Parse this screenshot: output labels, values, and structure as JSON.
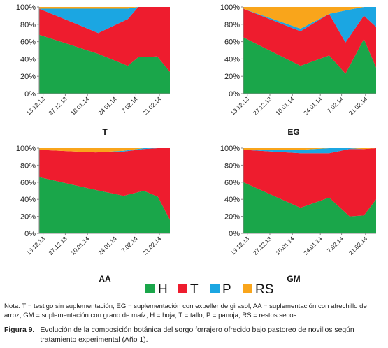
{
  "chart_data": [
    {
      "type": "area",
      "title": "T",
      "stacked": true,
      "categories": [
        "13.12.13",
        "27.12.13",
        "10.01.14",
        "24.01.14",
        "7.02.14",
        "21.02.14"
      ],
      "x": [
        0,
        14,
        28,
        42,
        47,
        56,
        62
      ],
      "ylim": [
        0,
        100
      ],
      "yticks": [
        "0%",
        "20%",
        "40%",
        "60%",
        "80%",
        "100%"
      ],
      "series": [
        {
          "name": "H",
          "values": [
            68,
            57,
            46,
            32,
            42,
            43,
            25
          ]
        },
        {
          "name": "T",
          "values": [
            30,
            27,
            24,
            54,
            58,
            57,
            75
          ]
        },
        {
          "name": "P",
          "values": [
            0,
            14,
            28,
            12,
            0,
            0,
            0
          ]
        },
        {
          "name": "RS",
          "values": [
            2,
            2,
            2,
            2,
            0,
            0,
            0
          ]
        }
      ]
    },
    {
      "type": "area",
      "title": "EG",
      "stacked": true,
      "categories": [
        "13.12.13",
        "27.12.13",
        "10.01.14",
        "24.01.14",
        "7.02.14",
        "21.02.14"
      ],
      "x": [
        0,
        28,
        42,
        50,
        59,
        65
      ],
      "ylim": [
        0,
        100
      ],
      "yticks": [
        "0%",
        "20%",
        "40%",
        "60%",
        "80%",
        "100%"
      ],
      "series": [
        {
          "name": "H",
          "values": [
            65,
            32,
            44,
            23,
            63,
            30
          ]
        },
        {
          "name": "T",
          "values": [
            33,
            40,
            48,
            36,
            27,
            47
          ]
        },
        {
          "name": "P",
          "values": [
            0,
            3,
            0,
            37,
            10,
            23
          ]
        },
        {
          "name": "RS",
          "values": [
            2,
            25,
            8,
            4,
            0,
            0
          ]
        }
      ]
    },
    {
      "type": "area",
      "title": "AA",
      "stacked": true,
      "categories": [
        "13.12.13",
        "27.12.13",
        "10.01.14",
        "24.01.14",
        "7.02.14",
        "21.02.14"
      ],
      "x": [
        0,
        28,
        42,
        52,
        59,
        65
      ],
      "ylim": [
        0,
        100
      ],
      "yticks": [
        "0%",
        "20%",
        "40%",
        "60%",
        "80%",
        "100%"
      ],
      "series": [
        {
          "name": "H",
          "values": [
            66,
            51,
            44,
            50,
            43,
            16
          ]
        },
        {
          "name": "T",
          "values": [
            32,
            44,
            52,
            49,
            57,
            84
          ]
        },
        {
          "name": "P",
          "values": [
            0,
            0,
            1,
            1,
            0,
            0
          ]
        },
        {
          "name": "RS",
          "values": [
            2,
            5,
            3,
            0,
            0,
            0
          ]
        }
      ]
    },
    {
      "type": "area",
      "title": "GM",
      "stacked": true,
      "categories": [
        "13.12.13",
        "27.12.13",
        "10.01.14",
        "24.01.14",
        "7.02.14",
        "21.02.14"
      ],
      "x": [
        0,
        28,
        42,
        52,
        59,
        65
      ],
      "ylim": [
        0,
        100
      ],
      "yticks": [
        "0%",
        "20%",
        "40%",
        "60%",
        "80%",
        "100%"
      ],
      "series": [
        {
          "name": "H",
          "values": [
            60,
            30,
            42,
            20,
            21,
            40
          ]
        },
        {
          "name": "T",
          "values": [
            38,
            64,
            52,
            79,
            78,
            60
          ]
        },
        {
          "name": "P",
          "values": [
            0,
            4,
            6,
            1,
            0,
            0
          ]
        },
        {
          "name": "RS",
          "values": [
            2,
            2,
            0,
            0,
            1,
            0
          ]
        }
      ]
    }
  ],
  "legend": [
    {
      "label": "H",
      "color": "#1aa64a"
    },
    {
      "label": "T",
      "color": "#ee1c2e"
    },
    {
      "label": "P",
      "color": "#1ba6e2"
    },
    {
      "label": "RS",
      "color": "#f9a51b"
    }
  ],
  "note": "Nota: T = testigo sin suplementación; EG = suplementación con expeller de girasol; AA = suplementación con afrechillo de arroz; GM = suplementación con grano de maíz; H = hoja; T = tallo; P = panoja; RS = restos secos.",
  "caption": {
    "label": "Figura 9.",
    "text": "Evolución de la composición botánica del sorgo forrajero ofrecido bajo pastoreo de novillos según tratamiento experimental (Año 1)."
  }
}
